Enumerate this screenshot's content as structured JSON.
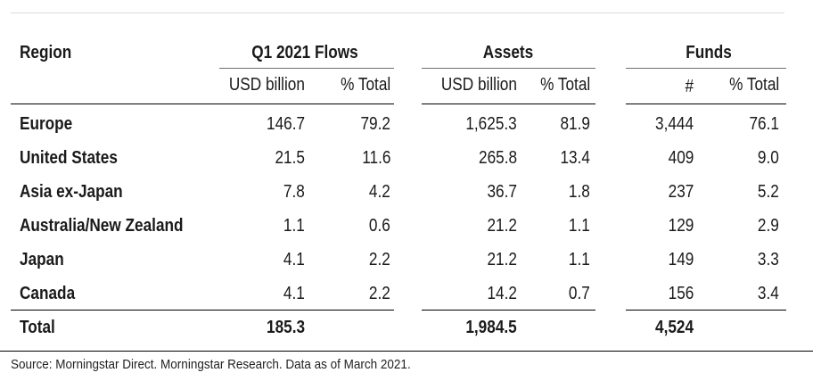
{
  "header": {
    "region": "Region",
    "flows_group": "Q1 2021 Flows",
    "assets_group": "Assets",
    "funds_group": "Funds",
    "flows_usd": "USD billion",
    "flows_pct": "% Total",
    "assets_usd": "USD billion",
    "assets_pct": "% Total",
    "funds_count": "#",
    "funds_pct": "% Total"
  },
  "rows": [
    {
      "region": "Europe",
      "flows": "146.7",
      "flows_pct": "79.2",
      "assets": "1,625.3",
      "assets_pct": "81.9",
      "funds": "3,444",
      "funds_pct": "76.1"
    },
    {
      "region": "United States",
      "flows": "21.5",
      "flows_pct": "11.6",
      "assets": "265.8",
      "assets_pct": "13.4",
      "funds": "409",
      "funds_pct": "9.0"
    },
    {
      "region": "Asia ex-Japan",
      "flows": "7.8",
      "flows_pct": "4.2",
      "assets": "36.7",
      "assets_pct": "1.8",
      "funds": "237",
      "funds_pct": "5.2"
    },
    {
      "region": "Australia/New Zealand",
      "flows": "1.1",
      "flows_pct": "0.6",
      "assets": "21.2",
      "assets_pct": "1.1",
      "funds": "129",
      "funds_pct": "2.9"
    },
    {
      "region": "Japan",
      "flows": "4.1",
      "flows_pct": "2.2",
      "assets": "21.2",
      "assets_pct": "1.1",
      "funds": "149",
      "funds_pct": "3.3"
    },
    {
      "region": "Canada",
      "flows": "4.1",
      "flows_pct": "2.2",
      "assets": "14.2",
      "assets_pct": "0.7",
      "funds": "156",
      "funds_pct": "3.4"
    }
  ],
  "total": {
    "region": "Total",
    "flows": "185.3",
    "assets": "1,984.5",
    "funds": "4,524"
  },
  "source": "Source: Morningstar Direct. Morningstar Research. Data as of March 2021."
}
